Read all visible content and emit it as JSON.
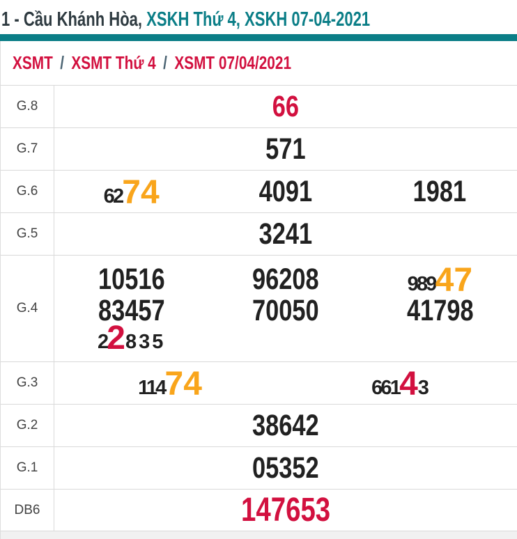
{
  "title": {
    "dark": "1 - Cầu Khánh Hòa, ",
    "teal": "XSKH Thứ 4, XSKH 07-04-2021"
  },
  "breadcrumb": {
    "items": [
      "XSMT",
      "XSMT Thứ 4",
      "XSMT 07/04/2021"
    ],
    "separator": "/"
  },
  "colors": {
    "teal": "#0b7e87",
    "red": "#d2103f",
    "orange": "#f9a51b",
    "dark_number": "#212121",
    "label_gray": "#424242",
    "border": "#d9d9d9"
  },
  "table": {
    "rows": [
      {
        "label": "G.8",
        "lines": [
          [
            [
              {
                "t": "66",
                "c": "red",
                "s": "normal"
              }
            ]
          ]
        ]
      },
      {
        "label": "G.7",
        "lines": [
          [
            [
              {
                "t": "571",
                "c": "dark",
                "s": "normal"
              }
            ]
          ]
        ]
      },
      {
        "label": "G.6",
        "lines": [
          [
            [
              {
                "t": "62",
                "c": "dark",
                "s": "small"
              },
              {
                "t": "74",
                "c": "orange",
                "s": "big"
              }
            ],
            [
              {
                "t": "4091",
                "c": "dark",
                "s": "normal"
              }
            ],
            [
              {
                "t": "1981",
                "c": "dark",
                "s": "normal"
              }
            ]
          ]
        ]
      },
      {
        "label": "G.5",
        "lines": [
          [
            [
              {
                "t": "3241",
                "c": "dark",
                "s": "normal"
              }
            ]
          ]
        ]
      },
      {
        "label": "G.4",
        "lines": [
          [
            [
              {
                "t": "10516",
                "c": "dark",
                "s": "normal"
              }
            ],
            [
              {
                "t": "96208",
                "c": "dark",
                "s": "normal"
              }
            ],
            [
              {
                "t": "989",
                "c": "dark",
                "s": "small"
              },
              {
                "t": "47",
                "c": "orange",
                "s": "big"
              }
            ]
          ],
          [
            [
              {
                "t": "83457",
                "c": "dark",
                "s": "normal"
              }
            ],
            [
              {
                "t": "70050",
                "c": "dark",
                "s": "normal"
              }
            ],
            [
              {
                "t": "41798",
                "c": "dark",
                "s": "normal"
              }
            ]
          ],
          [
            [
              {
                "t": "2",
                "c": "dark",
                "s": "small"
              },
              {
                "t": "2",
                "c": "red",
                "s": "big"
              },
              {
                "t": "835",
                "c": "dark",
                "s": "small"
              }
            ],
            [],
            []
          ]
        ]
      },
      {
        "label": "G.3",
        "lines": [
          [
            [
              {
                "t": "114",
                "c": "dark",
                "s": "small"
              },
              {
                "t": "74",
                "c": "orange",
                "s": "big"
              }
            ],
            [
              {
                "t": "661",
                "c": "dark",
                "s": "small"
              },
              {
                "t": "4",
                "c": "red",
                "s": "big"
              },
              {
                "t": "3",
                "c": "dark",
                "s": "small"
              }
            ]
          ]
        ]
      },
      {
        "label": "G.2",
        "lines": [
          [
            [
              {
                "t": "38642",
                "c": "dark",
                "s": "normal"
              }
            ]
          ]
        ]
      },
      {
        "label": "G.1",
        "lines": [
          [
            [
              {
                "t": "05352",
                "c": "dark",
                "s": "normal"
              }
            ]
          ]
        ]
      },
      {
        "label": "DB6",
        "lines": [
          [
            [
              {
                "t": "147653",
                "c": "red",
                "s": "db"
              }
            ]
          ]
        ]
      }
    ]
  }
}
